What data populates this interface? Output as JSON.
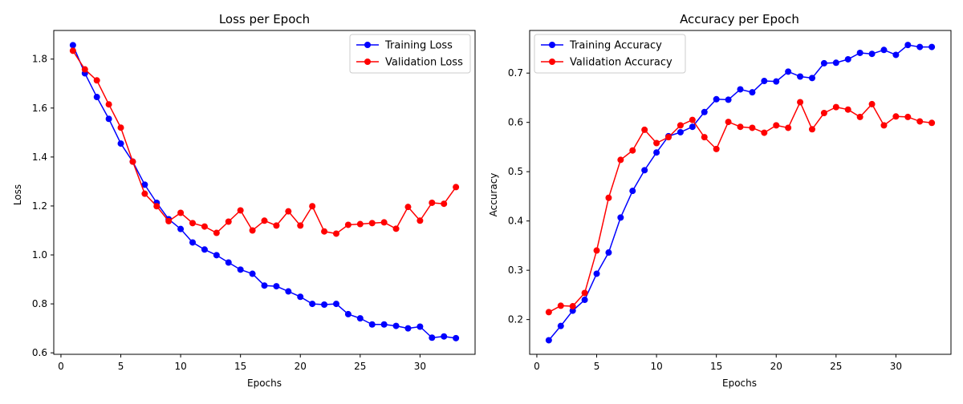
{
  "chart_data": [
    {
      "type": "line",
      "title": "Loss per Epoch",
      "xlabel": "Epochs",
      "ylabel": "Loss",
      "xlim": [
        -0.6,
        34.6
      ],
      "ylim": [
        0.594,
        1.917
      ],
      "xticks": [
        0,
        5,
        10,
        15,
        20,
        25,
        30
      ],
      "yticks": [
        0.6,
        0.8,
        1.0,
        1.2,
        1.4,
        1.6,
        1.8
      ],
      "ytick_labels": [
        "0.6",
        "0.8",
        "1.0",
        "1.2",
        "1.4",
        "1.6",
        "1.8"
      ],
      "legend_position": "top-right",
      "x": [
        1,
        2,
        3,
        4,
        5,
        6,
        7,
        8,
        9,
        10,
        11,
        12,
        13,
        14,
        15,
        16,
        17,
        18,
        19,
        20,
        21,
        22,
        23,
        24,
        25,
        26,
        27,
        28,
        29,
        30,
        31,
        32,
        33
      ],
      "series": [
        {
          "name": "Training Loss",
          "color": "#0000ff",
          "values": [
            1.857,
            1.742,
            1.645,
            1.556,
            1.455,
            1.381,
            1.287,
            1.213,
            1.146,
            1.106,
            1.051,
            1.022,
            0.999,
            0.969,
            0.94,
            0.923,
            0.875,
            0.872,
            0.851,
            0.829,
            0.8,
            0.797,
            0.8,
            0.758,
            0.741,
            0.716,
            0.716,
            0.71,
            0.7,
            0.707,
            0.662,
            0.667,
            0.66
          ]
        },
        {
          "name": "Validation Loss",
          "color": "#ff0000",
          "values": [
            1.834,
            1.758,
            1.713,
            1.615,
            1.52,
            1.381,
            1.25,
            1.199,
            1.138,
            1.172,
            1.13,
            1.116,
            1.09,
            1.136,
            1.182,
            1.1,
            1.14,
            1.12,
            1.178,
            1.12,
            1.199,
            1.096,
            1.087,
            1.123,
            1.126,
            1.13,
            1.133,
            1.107,
            1.196,
            1.14,
            1.213,
            1.209,
            1.277
          ]
        }
      ]
    },
    {
      "type": "line",
      "title": "Accuracy per Epoch",
      "xlabel": "Epochs",
      "ylabel": "Accuracy",
      "xlim": [
        -0.6,
        34.6
      ],
      "ylim": [
        0.1295,
        0.7865
      ],
      "xticks": [
        0,
        5,
        10,
        15,
        20,
        25,
        30
      ],
      "yticks": [
        0.2,
        0.3,
        0.4,
        0.5,
        0.6,
        0.7
      ],
      "ytick_labels": [
        "0.2",
        "0.3",
        "0.4",
        "0.5",
        "0.6",
        "0.7"
      ],
      "legend_position": "top-left",
      "x": [
        1,
        2,
        3,
        4,
        5,
        6,
        7,
        8,
        9,
        10,
        11,
        12,
        13,
        14,
        15,
        16,
        17,
        18,
        19,
        20,
        21,
        22,
        23,
        24,
        25,
        26,
        27,
        28,
        29,
        30,
        31,
        32,
        33
      ],
      "series": [
        {
          "name": "Training Accuracy",
          "color": "#0000ff",
          "values": [
            0.158,
            0.187,
            0.218,
            0.24,
            0.293,
            0.336,
            0.407,
            0.461,
            0.503,
            0.539,
            0.572,
            0.58,
            0.591,
            0.621,
            0.647,
            0.646,
            0.667,
            0.661,
            0.684,
            0.683,
            0.703,
            0.693,
            0.69,
            0.72,
            0.721,
            0.728,
            0.741,
            0.739,
            0.747,
            0.737,
            0.757,
            0.753,
            0.753
          ]
        },
        {
          "name": "Validation Accuracy",
          "color": "#ff0000",
          "values": [
            0.215,
            0.228,
            0.227,
            0.254,
            0.34,
            0.447,
            0.524,
            0.543,
            0.585,
            0.558,
            0.57,
            0.594,
            0.605,
            0.57,
            0.546,
            0.601,
            0.591,
            0.589,
            0.579,
            0.594,
            0.589,
            0.641,
            0.586,
            0.619,
            0.631,
            0.626,
            0.611,
            0.637,
            0.594,
            0.612,
            0.611,
            0.602,
            0.599
          ]
        }
      ]
    }
  ]
}
